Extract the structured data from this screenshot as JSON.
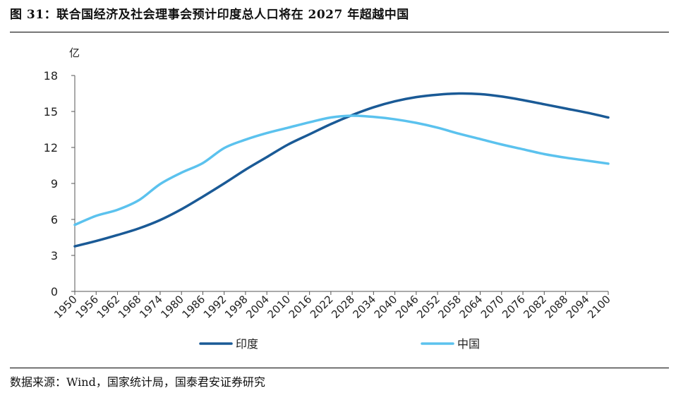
{
  "header": {
    "title": "图 31：联合国经济及社会理事会预计印度总人口将在 2027 年超越中国"
  },
  "footer": {
    "source": "数据来源：Wind，国家统计局，国泰君安证券研究"
  },
  "chart_data": {
    "type": "line",
    "title": "",
    "ylabel": "亿",
    "xlabel": "",
    "ylim": [
      0,
      18
    ],
    "yticks": [
      0,
      3,
      6,
      9,
      12,
      15,
      18
    ],
    "categories": [
      "1950",
      "1956",
      "1962",
      "1968",
      "1974",
      "1980",
      "1986",
      "1992",
      "1998",
      "2004",
      "2010",
      "2016",
      "2022",
      "2028",
      "2034",
      "2040",
      "2046",
      "2052",
      "2058",
      "2064",
      "2070",
      "2076",
      "2082",
      "2088",
      "2094",
      "2100"
    ],
    "legend_position": "bottom",
    "grid": false,
    "series": [
      {
        "name": "印度",
        "color": "#1a5a96",
        "values": [
          3.76,
          4.2,
          4.7,
          5.25,
          5.95,
          6.85,
          7.9,
          9.0,
          10.15,
          11.2,
          12.25,
          13.1,
          13.95,
          14.7,
          15.35,
          15.85,
          16.2,
          16.4,
          16.5,
          16.45,
          16.25,
          15.95,
          15.6,
          15.25,
          14.9,
          14.5
        ]
      },
      {
        "name": "中国",
        "color": "#5bc2ee",
        "values": [
          5.55,
          6.3,
          6.8,
          7.6,
          8.95,
          9.9,
          10.7,
          11.95,
          12.65,
          13.2,
          13.65,
          14.1,
          14.5,
          14.65,
          14.55,
          14.35,
          14.05,
          13.65,
          13.15,
          12.7,
          12.25,
          11.85,
          11.45,
          11.15,
          10.9,
          10.65
        ]
      }
    ]
  }
}
